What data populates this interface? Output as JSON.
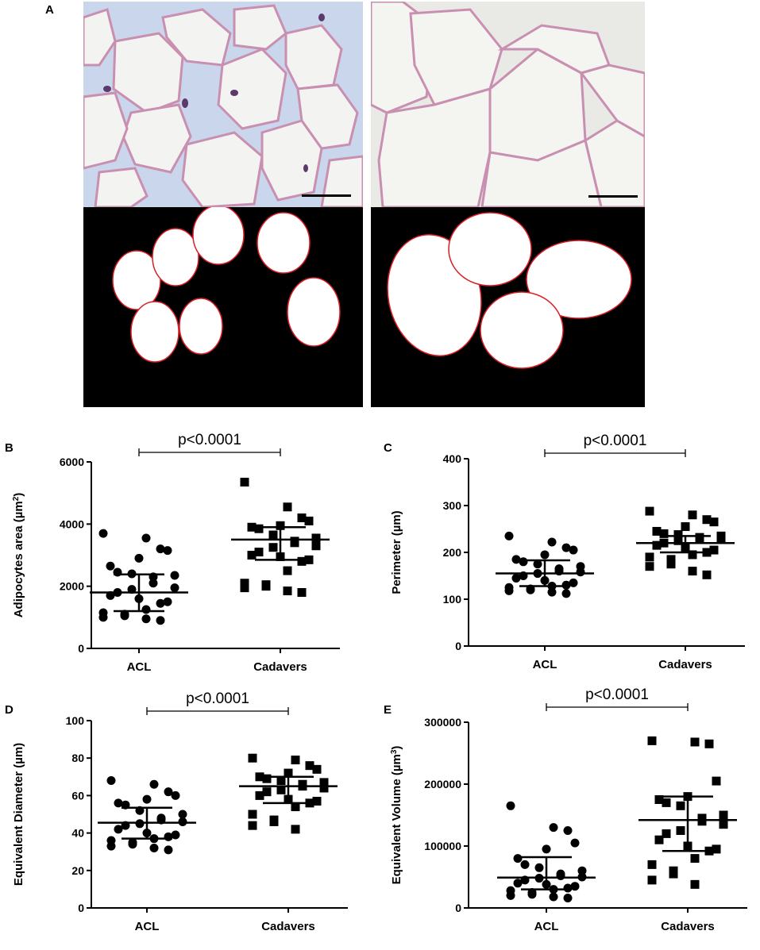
{
  "panels": {
    "A": {
      "letter": "A"
    },
    "B": {
      "letter": "B"
    },
    "C": {
      "letter": "C"
    },
    "D": {
      "letter": "D"
    },
    "E": {
      "letter": "E"
    }
  },
  "colors": {
    "histo_background_left": "#c9d6ec",
    "histo_background_right": "#e9eae6",
    "cell_interior": "#f3f4f1",
    "membrane": "#c98fb0",
    "nucleus": "#5b3a6b",
    "mask_background": "#000000",
    "mask_cell": "#ffffff",
    "fit_ellipse": "#d81f26",
    "scale_bar": "#000000",
    "marker": "#000000"
  },
  "chart_data": [
    {
      "panel": "B",
      "type": "scatter",
      "xlabel": "",
      "ylabel": "Adipocytes area (µm²)",
      "ylabel_parts": {
        "text": "Adipocytes area (µm",
        "superscript": "2",
        "close": ")"
      },
      "categories": [
        "ACL",
        "Cadavers"
      ],
      "ylim": [
        0,
        6000
      ],
      "yticks": [
        "0",
        "2000",
        "4000",
        "6000"
      ],
      "significance": "p<0.0001",
      "series": [
        {
          "category": "ACL",
          "marker": "circle",
          "median": 1800,
          "q1": 1200,
          "q3": 2380,
          "values": [
            3700,
            3550,
            3200,
            3150,
            2900,
            2650,
            2450,
            2400,
            2350,
            2300,
            2100,
            1950,
            1900,
            1800,
            1700,
            1600,
            1500,
            1450,
            1250,
            1150,
            1100,
            1050,
            1000,
            950,
            900
          ]
        },
        {
          "category": "Cadavers",
          "marker": "square",
          "median": 3500,
          "q1": 2850,
          "q3": 3900,
          "values": [
            5350,
            4550,
            4200,
            4100,
            3950,
            3900,
            3850,
            3650,
            3550,
            3450,
            3400,
            3300,
            3250,
            3100,
            3000,
            2950,
            2850,
            2800,
            2500,
            2100,
            2050,
            2000,
            1950,
            1850,
            1800
          ]
        }
      ]
    },
    {
      "panel": "C",
      "type": "scatter",
      "xlabel": "",
      "ylabel": "Perimeter (µm)",
      "ylabel_parts": {
        "text": "Perimeter (µm)",
        "superscript": "",
        "close": ""
      },
      "categories": [
        "ACL",
        "Cadavers"
      ],
      "ylim": [
        0,
        400
      ],
      "yticks": [
        "0",
        "100",
        "200",
        "300",
        "400"
      ],
      "significance": "p<0.0001",
      "series": [
        {
          "category": "ACL",
          "marker": "circle",
          "median": 155,
          "q1": 128,
          "q3": 183,
          "values": [
            235,
            222,
            210,
            205,
            195,
            185,
            180,
            175,
            170,
            165,
            160,
            158,
            155,
            150,
            145,
            140,
            135,
            130,
            128,
            125,
            122,
            120,
            118,
            115,
            112
          ]
        },
        {
          "category": "Cadavers",
          "marker": "square",
          "median": 220,
          "q1": 200,
          "q3": 235,
          "values": [
            288,
            280,
            270,
            265,
            255,
            245,
            240,
            238,
            235,
            232,
            230,
            228,
            225,
            220,
            215,
            210,
            205,
            200,
            195,
            190,
            185,
            175,
            170,
            160,
            152
          ]
        }
      ]
    },
    {
      "panel": "D",
      "type": "scatter",
      "xlabel": "",
      "ylabel": "Equivalent Diameter (µm)",
      "ylabel_parts": {
        "text": "Equivalent Diameter (µm)",
        "superscript": "",
        "close": ""
      },
      "categories": [
        "ACL",
        "Cadavers"
      ],
      "ylim": [
        0,
        100
      ],
      "yticks": [
        "0",
        "20",
        "40",
        "60",
        "80",
        "100"
      ],
      "significance": "p<0.0001",
      "series": [
        {
          "category": "ACL",
          "marker": "circle",
          "median": 45.5,
          "q1": 37,
          "q3": 53.5,
          "values": [
            68,
            66,
            62,
            60,
            58,
            56,
            55,
            52,
            50,
            48,
            47,
            46,
            45,
            44,
            42,
            40,
            39,
            38,
            37,
            36,
            35,
            34,
            33,
            32,
            31
          ]
        },
        {
          "category": "Cadavers",
          "marker": "square",
          "median": 65,
          "q1": 56,
          "q3": 70,
          "values": [
            80,
            79,
            76,
            74,
            72,
            70,
            69,
            68,
            67,
            66,
            65,
            64,
            63,
            62,
            60,
            58,
            57,
            56,
            54,
            50,
            47,
            46,
            44,
            42
          ]
        }
      ]
    },
    {
      "panel": "E",
      "type": "scatter",
      "xlabel": "",
      "ylabel": "Equivalent Volume (µm³)",
      "ylabel_parts": {
        "text": "Equivalent Volume (µm",
        "superscript": "3",
        "close": ")"
      },
      "categories": [
        "ACL",
        "Cadavers"
      ],
      "ylim": [
        0,
        300000
      ],
      "yticks": [
        "0",
        "100000",
        "200000",
        "300000"
      ],
      "significance": "p<0.0001",
      "series": [
        {
          "category": "ACL",
          "marker": "circle",
          "median": 49000,
          "q1": 30000,
          "q3": 82000,
          "values": [
            165000,
            130000,
            125000,
            105000,
            95000,
            80000,
            70000,
            65000,
            60000,
            55000,
            52000,
            50000,
            48000,
            45000,
            40000,
            38000,
            35000,
            32000,
            30000,
            28000,
            25000,
            22000,
            20000,
            18000,
            16000
          ]
        },
        {
          "category": "Cadavers",
          "marker": "square",
          "median": 142000,
          "q1": 92000,
          "q3": 180000,
          "values": [
            270000,
            268000,
            265000,
            205000,
            180000,
            175000,
            170000,
            165000,
            150000,
            145000,
            140000,
            135000,
            125000,
            120000,
            110000,
            100000,
            95000,
            92000,
            80000,
            70000,
            60000,
            55000,
            45000,
            38000
          ]
        }
      ]
    }
  ]
}
